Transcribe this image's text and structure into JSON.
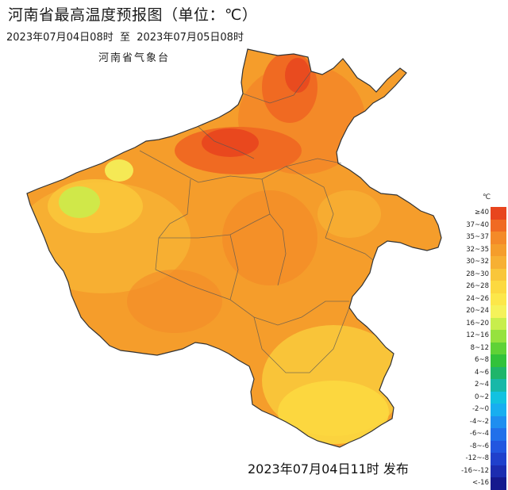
{
  "title": "河南省最高温度预报图（单位：℃）",
  "period": "2023年07月04日08时  至  2023年07月05日08时",
  "agency": "河南省气象台",
  "issued": "2023年07月04日11时 发布",
  "legend": {
    "unit": "℃",
    "items": [
      {
        "label": "≥40",
        "color": "#e8451e"
      },
      {
        "label": "37~40",
        "color": "#f06a22"
      },
      {
        "label": "35~37",
        "color": "#f48a28"
      },
      {
        "label": "32~35",
        "color": "#f59d2b"
      },
      {
        "label": "30~32",
        "color": "#f7b033"
      },
      {
        "label": "28~30",
        "color": "#f9c63a"
      },
      {
        "label": "26~28",
        "color": "#fcd940"
      },
      {
        "label": "24~26",
        "color": "#fce74a"
      },
      {
        "label": "20~24",
        "color": "#f5f25a"
      },
      {
        "label": "16~20",
        "color": "#c8ee4c"
      },
      {
        "label": "12~16",
        "color": "#96e23e"
      },
      {
        "label": "8~12",
        "color": "#5fd236"
      },
      {
        "label": "6~8",
        "color": "#32c23a"
      },
      {
        "label": "4~6",
        "color": "#1fb56a"
      },
      {
        "label": "2~4",
        "color": "#18b8a8"
      },
      {
        "label": "0~2",
        "color": "#12c2e0"
      },
      {
        "label": "-2~0",
        "color": "#18aef0"
      },
      {
        "label": "-4~-2",
        "color": "#1e8ef0"
      },
      {
        "label": "-6~-4",
        "color": "#2170ea"
      },
      {
        "label": "-8~-6",
        "color": "#2256e0"
      },
      {
        "label": "-12~-8",
        "color": "#2040cc"
      },
      {
        "label": "-16~-12",
        "color": "#1c2cb0"
      },
      {
        "label": "<-16",
        "color": "#15198e"
      }
    ]
  }
}
